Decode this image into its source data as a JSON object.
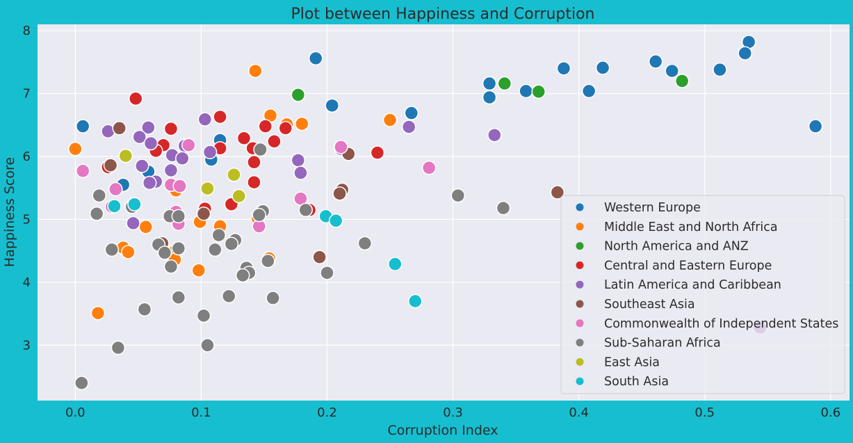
{
  "chart_data": {
    "type": "scatter",
    "title": "Plot between Happiness and Corruption",
    "xlabel": "Corruption Index",
    "ylabel": "Happiness Score",
    "xlim": [
      -0.03,
      0.615
    ],
    "ylim": [
      2.12,
      8.1
    ],
    "xticks": [
      0.0,
      0.1,
      0.2,
      0.3,
      0.4,
      0.5,
      0.6
    ],
    "xtick_labels": [
      "0.0",
      "0.1",
      "0.2",
      "0.3",
      "0.4",
      "0.5",
      "0.6"
    ],
    "yticks": [
      3,
      4,
      5,
      6,
      7,
      8
    ],
    "ytick_labels": [
      "3",
      "4",
      "5",
      "6",
      "7",
      "8"
    ],
    "grid": true,
    "legend_position": "bottom-right",
    "background_color": "#eaeaf2",
    "series": [
      {
        "name": "Western Europe",
        "color": "#1f77b4",
        "points": [
          [
            0.535,
            7.82
          ],
          [
            0.532,
            7.64
          ],
          [
            0.191,
            7.56
          ],
          [
            0.461,
            7.51
          ],
          [
            0.474,
            7.36
          ],
          [
            0.419,
            7.41
          ],
          [
            0.388,
            7.4
          ],
          [
            0.512,
            7.38
          ],
          [
            0.329,
            7.16
          ],
          [
            0.358,
            7.04
          ],
          [
            0.408,
            7.04
          ],
          [
            0.329,
            6.94
          ],
          [
            0.204,
            6.81
          ],
          [
            0.267,
            6.69
          ],
          [
            0.588,
            6.48
          ],
          [
            0.006,
            6.48
          ],
          [
            0.115,
            6.26
          ],
          [
            0.108,
            5.95
          ],
          [
            0.058,
            5.76
          ],
          [
            0.038,
            5.55
          ]
        ]
      },
      {
        "name": "Middle East and North Africa",
        "color": "#ff7f0e",
        "points": [
          [
            0.143,
            7.36
          ],
          [
            0.155,
            6.65
          ],
          [
            0.168,
            6.51
          ],
          [
            0.18,
            6.52
          ],
          [
            0.25,
            6.58
          ],
          [
            0.0,
            6.12
          ],
          [
            0.08,
            5.46
          ],
          [
            0.056,
            4.88
          ],
          [
            0.115,
            4.89
          ],
          [
            0.099,
            4.96
          ],
          [
            0.145,
            5.01
          ],
          [
            0.038,
            4.55
          ],
          [
            0.042,
            4.48
          ],
          [
            0.079,
            4.49
          ],
          [
            0.079,
            4.36
          ],
          [
            0.098,
            4.19
          ],
          [
            0.018,
            3.51
          ],
          [
            0.154,
            4.38
          ]
        ]
      },
      {
        "name": "North America and ANZ",
        "color": "#2ca02c",
        "points": [
          [
            0.177,
            6.98
          ],
          [
            0.341,
            7.16
          ],
          [
            0.368,
            7.03
          ],
          [
            0.482,
            7.2
          ]
        ]
      },
      {
        "name": "Central and Eastern Europe",
        "color": "#d62728",
        "points": [
          [
            0.048,
            6.92
          ],
          [
            0.115,
            6.63
          ],
          [
            0.151,
            6.48
          ],
          [
            0.167,
            6.45
          ],
          [
            0.076,
            6.44
          ],
          [
            0.134,
            6.29
          ],
          [
            0.158,
            6.24
          ],
          [
            0.07,
            6.18
          ],
          [
            0.115,
            6.13
          ],
          [
            0.141,
            6.13
          ],
          [
            0.064,
            6.09
          ],
          [
            0.24,
            6.06
          ],
          [
            0.026,
            5.83
          ],
          [
            0.142,
            5.91
          ],
          [
            0.142,
            5.59
          ],
          [
            0.124,
            5.24
          ],
          [
            0.103,
            5.17
          ],
          [
            0.186,
            5.15
          ]
        ]
      },
      {
        "name": "Latin America and Caribbean",
        "color": "#9467bd",
        "points": [
          [
            0.103,
            6.59
          ],
          [
            0.058,
            6.46
          ],
          [
            0.026,
            6.4
          ],
          [
            0.051,
            6.31
          ],
          [
            0.265,
            6.47
          ],
          [
            0.333,
            6.34
          ],
          [
            0.211,
            6.12
          ],
          [
            0.087,
            6.17
          ],
          [
            0.06,
            6.21
          ],
          [
            0.077,
            6.02
          ],
          [
            0.107,
            6.07
          ],
          [
            0.085,
            5.97
          ],
          [
            0.053,
            5.85
          ],
          [
            0.177,
            5.94
          ],
          [
            0.076,
            5.78
          ],
          [
            0.179,
            5.74
          ],
          [
            0.064,
            5.6
          ],
          [
            0.059,
            5.58
          ],
          [
            0.046,
            4.94
          ],
          [
            0.544,
            3.28
          ]
        ]
      },
      {
        "name": "Southeast Asia",
        "color": "#8c564b",
        "points": [
          [
            0.035,
            6.45
          ],
          [
            0.217,
            6.04
          ],
          [
            0.028,
            5.86
          ],
          [
            0.212,
            5.47
          ],
          [
            0.21,
            5.41
          ],
          [
            0.383,
            5.43
          ],
          [
            0.102,
            5.09
          ],
          [
            0.194,
            4.4
          ],
          [
            0.069,
            4.62
          ]
        ]
      },
      {
        "name": "Commonwealth of Independent States",
        "color": "#e377c2",
        "points": [
          [
            0.211,
            6.15
          ],
          [
            0.09,
            6.18
          ],
          [
            0.006,
            5.77
          ],
          [
            0.281,
            5.82
          ],
          [
            0.032,
            5.48
          ],
          [
            0.076,
            5.55
          ],
          [
            0.083,
            5.53
          ],
          [
            0.179,
            5.33
          ],
          [
            0.08,
            5.12
          ],
          [
            0.029,
            5.2
          ],
          [
            0.082,
            4.93
          ],
          [
            0.146,
            4.89
          ]
        ]
      },
      {
        "name": "Sub-Saharan Africa",
        "color": "#7f7f7f",
        "points": [
          [
            0.147,
            6.11
          ],
          [
            0.304,
            5.38
          ],
          [
            0.34,
            5.18
          ],
          [
            0.183,
            5.15
          ],
          [
            0.019,
            5.38
          ],
          [
            0.045,
            5.2
          ],
          [
            0.017,
            5.09
          ],
          [
            0.075,
            5.05
          ],
          [
            0.082,
            5.05
          ],
          [
            0.149,
            5.13
          ],
          [
            0.146,
            5.07
          ],
          [
            0.114,
            4.75
          ],
          [
            0.127,
            4.67
          ],
          [
            0.124,
            4.61
          ],
          [
            0.066,
            4.6
          ],
          [
            0.029,
            4.52
          ],
          [
            0.082,
            4.54
          ],
          [
            0.111,
            4.52
          ],
          [
            0.071,
            4.47
          ],
          [
            0.153,
            4.34
          ],
          [
            0.076,
            4.25
          ],
          [
            0.136,
            4.23
          ],
          [
            0.138,
            4.15
          ],
          [
            0.133,
            4.11
          ],
          [
            0.2,
            4.15
          ],
          [
            0.23,
            4.62
          ],
          [
            0.082,
            3.76
          ],
          [
            0.122,
            3.78
          ],
          [
            0.157,
            3.75
          ],
          [
            0.055,
            3.57
          ],
          [
            0.102,
            3.47
          ],
          [
            0.034,
            2.96
          ],
          [
            0.105,
            3.0
          ],
          [
            0.005,
            2.4
          ]
        ]
      },
      {
        "name": "East Asia",
        "color": "#bcbd22",
        "points": [
          [
            0.04,
            6.01
          ],
          [
            0.126,
            5.71
          ],
          [
            0.105,
            5.49
          ],
          [
            0.13,
            5.37
          ]
        ]
      },
      {
        "name": "South Asia",
        "color": "#17becf",
        "points": [
          [
            0.199,
            5.05
          ],
          [
            0.207,
            4.98
          ],
          [
            0.254,
            4.29
          ],
          [
            0.27,
            3.7
          ],
          [
            0.031,
            5.21
          ],
          [
            0.047,
            5.24
          ]
        ]
      }
    ]
  }
}
